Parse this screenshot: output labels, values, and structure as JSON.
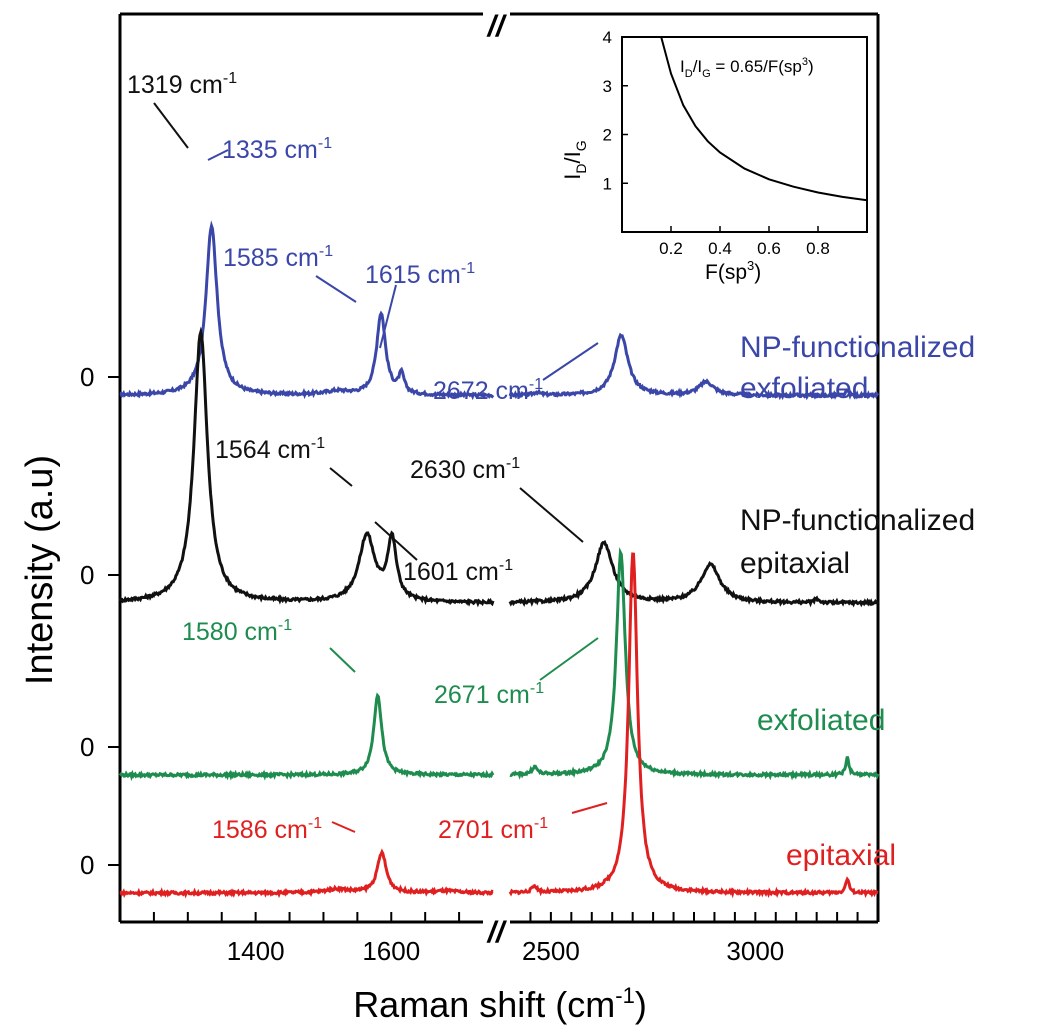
{
  "chart_data": [
    {
      "type": "line",
      "xlabel": "Raman shift (cm",
      "xlabel_sup": "-1",
      "xlabel_close": ")",
      "ylabel": "Intensity (a.u)",
      "axis_break": "//",
      "x_segments": [
        {
          "xlim": [
            1200,
            1750
          ],
          "ticks": [
            1250,
            1300,
            1350,
            1400,
            1450,
            1500,
            1550,
            1600,
            1650,
            1700
          ],
          "tick_labels": {
            "1400": "1400",
            "1600": "1600"
          }
        },
        {
          "xlim": [
            2400,
            3300
          ],
          "ticks": [
            2450,
            2500,
            2550,
            2600,
            2650,
            2700,
            2750,
            2800,
            2850,
            2900,
            2950,
            3000,
            3050,
            3100,
            3150,
            3200,
            3250
          ],
          "tick_labels": {
            "2500": "2500",
            "3000": "3000"
          }
        }
      ],
      "zero_label": "0",
      "series": [
        {
          "name": "NP-functionalized exfoliated",
          "label_lines": [
            "NP-functionalized",
            "exfoliated"
          ],
          "color": "#3b47a8",
          "baseline": 0.1,
          "peaks": [
            {
              "x": 1335,
              "h": 1.79,
              "w": 10
            },
            {
              "x": 1585,
              "h": 0.86,
              "w": 8
            },
            {
              "x": 1615,
              "h": 0.2,
              "w": 5
            },
            {
              "x": 1520,
              "h": 0.04,
              "w": 22
            },
            {
              "x": 2672,
              "h": 0.63,
              "w": 20
            },
            {
              "x": 2465,
              "h": 0.03,
              "w": 10
            },
            {
              "x": 2880,
              "h": 0.14,
              "w": 22
            },
            {
              "x": 3225,
              "h": 0.05,
              "w": 4
            }
          ],
          "annotations": [
            {
              "text": "1335 cm",
              "sup": "-1"
            },
            {
              "text": "1585 cm",
              "sup": "-1"
            },
            {
              "text": "1615 cm",
              "sup": "-1"
            },
            {
              "text": "2672 cm",
              "sup": "-1"
            }
          ]
        },
        {
          "name": "NP-functionalized epitaxial",
          "label_lines": [
            "NP-functionalized",
            "epitaxial"
          ],
          "color": "#111111",
          "baseline": 0.0,
          "peaks": [
            {
              "x": 1319,
              "h": 2.85,
              "w": 12
            },
            {
              "x": 1564,
              "h": 0.7,
              "w": 14
            },
            {
              "x": 1601,
              "h": 0.64,
              "w": 8
            },
            {
              "x": 2630,
              "h": 0.63,
              "w": 26
            },
            {
              "x": 2890,
              "h": 0.4,
              "w": 28
            },
            {
              "x": 3150,
              "h": 0.04,
              "w": 6
            }
          ],
          "annotations": [
            {
              "text": "1319 cm",
              "sup": "-1"
            },
            {
              "text": "1564 cm",
              "sup": "-1"
            },
            {
              "text": "1601 cm",
              "sup": "-1"
            },
            {
              "text": "2630 cm",
              "sup": "-1"
            }
          ]
        },
        {
          "name": "exfoliated",
          "label_lines": [
            "exfoliated"
          ],
          "color": "#1e8c4e",
          "baseline": 0.0,
          "peaks": [
            {
              "x": 1580,
              "h": 0.85,
              "w": 7
            },
            {
              "x": 2671,
              "h": 2.35,
              "w": 13
            },
            {
              "x": 2460,
              "h": 0.08,
              "w": 8
            },
            {
              "x": 3225,
              "h": 0.18,
              "w": 5
            }
          ],
          "annotations": [
            {
              "text": "1580 cm",
              "sup": "-1"
            },
            {
              "text": "2671 cm",
              "sup": "-1"
            }
          ]
        },
        {
          "name": "epitaxial",
          "label_lines": [
            "epitaxial"
          ],
          "color": "#e02020",
          "baseline": 0.0,
          "peaks": [
            {
              "x": 1586,
              "h": 0.42,
              "w": 8
            },
            {
              "x": 1520,
              "h": 0.04,
              "w": 20
            },
            {
              "x": 1680,
              "h": 0.02,
              "w": 20
            },
            {
              "x": 2701,
              "h": 3.6,
              "w": 13
            },
            {
              "x": 2460,
              "h": 0.07,
              "w": 7
            },
            {
              "x": 3225,
              "h": 0.15,
              "w": 5
            }
          ],
          "annotations": [
            {
              "text": "1586 cm",
              "sup": "-1"
            },
            {
              "text": "2701 cm",
              "sup": "-1"
            }
          ]
        }
      ]
    },
    {
      "type": "line",
      "inset": true,
      "equation": {
        "prefix": "I",
        "sub1": "D",
        "mid": "/I",
        "sub2": "G",
        "rest": " = 0.65/F(sp",
        "sup": "3",
        "close": ")"
      },
      "xlabel": {
        "prefix": "F(sp",
        "sup": "3",
        "close": ")"
      },
      "ylabel": {
        "prefix": "I",
        "sub1": "D",
        "mid": "/I",
        "sub2": "G"
      },
      "xlim": [
        0,
        1.0
      ],
      "ylim": [
        0,
        4
      ],
      "xticks": [
        0.2,
        0.4,
        0.6,
        0.8
      ],
      "xtick_labels": [
        "0.2",
        "0.4",
        "0.6",
        "0.8"
      ],
      "yticks": [
        1,
        2,
        3,
        4
      ],
      "ytick_labels": [
        "1",
        "2",
        "3",
        "4"
      ],
      "series": [
        {
          "x": [
            0.16,
            0.2,
            0.25,
            0.3,
            0.35,
            0.4,
            0.5,
            0.6,
            0.7,
            0.8,
            0.9,
            1.0
          ],
          "y": [
            4.06,
            3.25,
            2.6,
            2.17,
            1.86,
            1.63,
            1.3,
            1.08,
            0.93,
            0.81,
            0.72,
            0.65
          ]
        }
      ]
    }
  ]
}
